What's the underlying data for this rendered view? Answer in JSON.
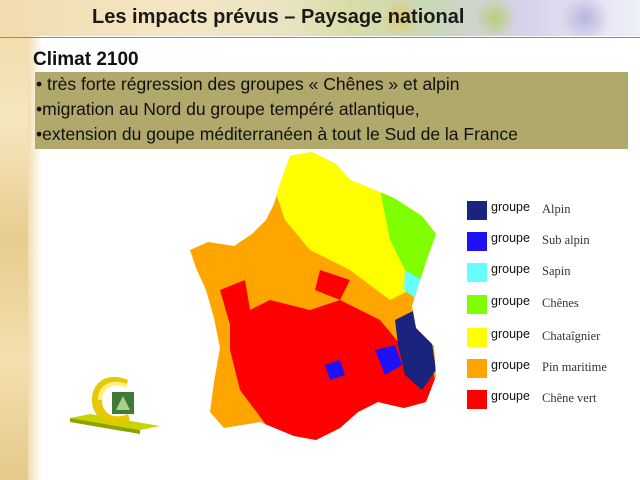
{
  "header": {
    "title": "Les impacts prévus – Paysage national"
  },
  "section": {
    "title": "Climat 2100"
  },
  "bullets": [
    "• très forte régression des groupes « Chênes » et alpin",
    "•migration au Nord du groupe tempéré atlantique,",
    "•extension du goupe méditerranéen à tout le Sud de la France"
  ],
  "legend": {
    "items": [
      {
        "prefix": "groupe",
        "name": "Alpin",
        "color": "#1a237e"
      },
      {
        "prefix": "groupe",
        "name": "Sub alpin",
        "color": "#1f10f5"
      },
      {
        "prefix": "groupe",
        "name": "Sapin",
        "color": "#66ffff"
      },
      {
        "prefix": "groupe",
        "name": "Chênes",
        "color": "#80ff00"
      },
      {
        "prefix": "groupe",
        "name": "Chataîgnier",
        "color": "#ffff00"
      },
      {
        "prefix": "groupe",
        "name": "Pin maritime",
        "color": "#ffa500"
      },
      {
        "prefix": "groupe",
        "name": "Chêne vert",
        "color": "#ff0000"
      }
    ]
  }
}
